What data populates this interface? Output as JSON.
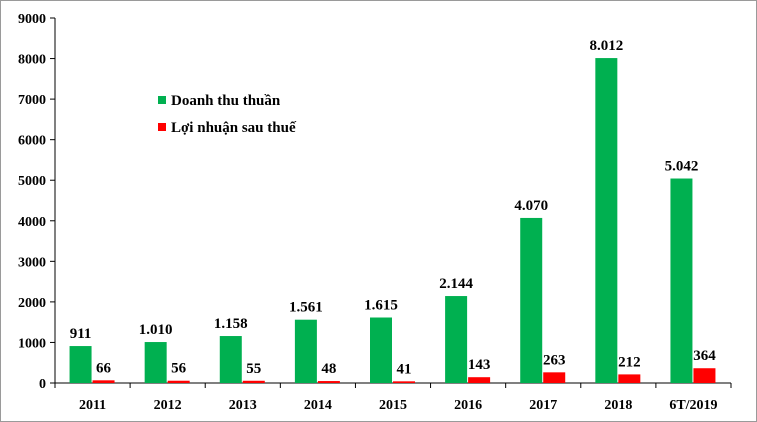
{
  "chart_data": {
    "type": "bar",
    "categories": [
      "2011",
      "2012",
      "2013",
      "2014",
      "2015",
      "2016",
      "2017",
      "2018",
      "6T/2019"
    ],
    "series": [
      {
        "name": "Doanh thu thuần",
        "color": "#00b050",
        "values": [
          911,
          1010,
          1158,
          1561,
          1615,
          2144,
          4070,
          8012,
          5042
        ],
        "labels": [
          "911",
          "1.010",
          "1.158",
          "1.561",
          "1.615",
          "2.144",
          "4.070",
          "8.012",
          "5.042"
        ]
      },
      {
        "name": "Lợi nhuận  sau thuế",
        "color": "#ff0000",
        "values": [
          66,
          56,
          55,
          48,
          41,
          143,
          263,
          212,
          364
        ],
        "labels": [
          "66",
          "56",
          "55",
          "48",
          "41",
          "143",
          "263",
          "212",
          "364"
        ]
      }
    ],
    "title": "",
    "xlabel": "",
    "ylabel": "",
    "ylim": [
      0,
      9000
    ],
    "yticks": [
      0,
      1000,
      2000,
      3000,
      4000,
      5000,
      6000,
      7000,
      8000,
      9000
    ],
    "grid": false,
    "legend_position": "upper-left"
  }
}
